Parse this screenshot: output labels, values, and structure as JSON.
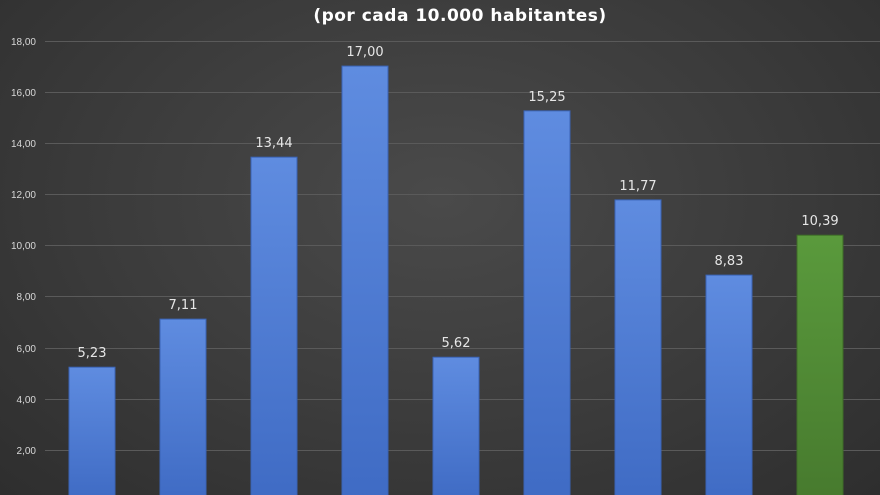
{
  "chart_data": {
    "type": "bar",
    "title": "",
    "subtitle": "(por cada 10.000 habitantes)",
    "xlabel": "",
    "ylabel": "",
    "categories": [
      "",
      "",
      "",
      "",
      "",
      "",
      "",
      "",
      ""
    ],
    "values": [
      5.23,
      7.11,
      13.44,
      17.0,
      5.62,
      15.25,
      11.77,
      8.83,
      10.39
    ],
    "data_labels": [
      "5,23",
      "7,11",
      "13,44",
      "17,00",
      "5,62",
      "15,25",
      "11,77",
      "8,83",
      "10,39"
    ],
    "bar_colors": [
      "#4a78d0",
      "#4a78d0",
      "#4a78d0",
      "#4a78d0",
      "#4a78d0",
      "#4a78d0",
      "#4a78d0",
      "#4a78d0",
      "#4f8a35"
    ],
    "ylim": [
      0,
      18
    ],
    "yticks": [
      2,
      4,
      6,
      8,
      10,
      12,
      14,
      16,
      18
    ],
    "ytick_labels": [
      "2,00",
      "4,00",
      "6,00",
      "8,00",
      "10,00",
      "12,00",
      "14,00",
      "16,00",
      "18,00"
    ],
    "grid": true,
    "legend": "none"
  },
  "colors": {
    "background": "#3a3a3a",
    "bar_blue": "#4a78d0",
    "bar_green": "#4f8a35",
    "text": "#ffffff",
    "grid": "#5a5a5a"
  }
}
